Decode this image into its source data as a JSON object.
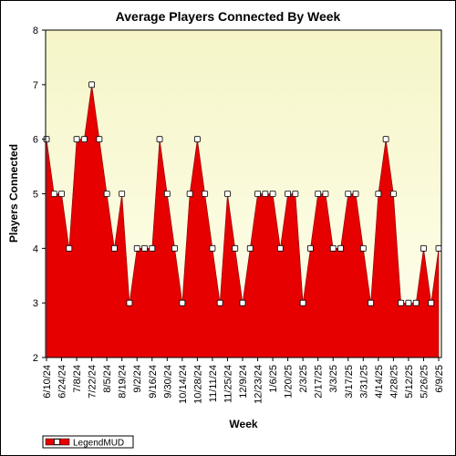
{
  "chart_data": {
    "type": "area",
    "title": "Average Players Connected By Week",
    "xlabel": "Week",
    "ylabel": "Players Connected",
    "ylim": [
      2,
      8
    ],
    "yticks": [
      2,
      3,
      4,
      5,
      6,
      7,
      8
    ],
    "grid": false,
    "legend_placement": "bottom-left",
    "colors": {
      "area": "#e60000",
      "plot_bg_top": "#f5f5c8",
      "plot_bg_bottom": "#ffffee",
      "marker_fill": "#ffffff"
    },
    "x_tick_labels": [
      "6/10/24",
      "6/24/24",
      "7/8/24",
      "7/22/24",
      "8/5/24",
      "8/19/24",
      "9/2/24",
      "9/16/24",
      "9/30/24",
      "10/14/24",
      "10/28/24",
      "11/11/24",
      "11/25/24",
      "12/9/24",
      "12/23/24",
      "1/6/25",
      "1/20/25",
      "2/3/25",
      "2/17/25",
      "3/3/25",
      "3/17/25",
      "3/31/25",
      "4/14/25",
      "4/28/25",
      "5/12/25",
      "5/26/25",
      "6/9/25"
    ],
    "series": [
      {
        "name": "LegendMUD",
        "values": [
          6,
          5,
          5,
          4,
          6,
          6,
          7,
          6,
          5,
          4,
          5,
          3,
          4,
          4,
          4,
          6,
          5,
          4,
          3,
          5,
          6,
          5,
          4,
          3,
          5,
          4,
          3,
          4,
          5,
          5,
          5,
          4,
          5,
          5,
          3,
          4,
          5,
          5,
          4,
          4,
          5,
          5,
          4,
          3,
          5,
          6,
          5,
          3,
          3,
          3,
          4,
          3,
          4
        ]
      }
    ]
  }
}
